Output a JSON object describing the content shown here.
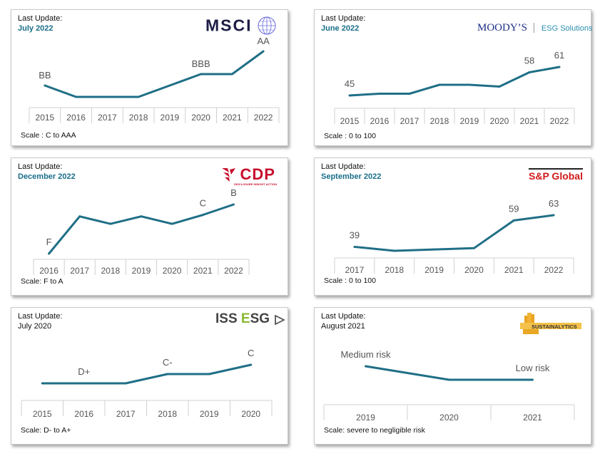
{
  "colors": {
    "line": "#1f6f86",
    "accent_date": "#1a6e8a",
    "grid": "#d0d0d0"
  },
  "cards": [
    {
      "id": "msci",
      "update_label": "Last Update:",
      "update_date": "July 2022",
      "scale": "Scale : C to AAA",
      "logo": {
        "text": "MSCI",
        "icon": "globe-icon"
      },
      "chart_data": {
        "type": "line",
        "x": [
          "2015",
          "2016",
          "2017",
          "2018",
          "2019",
          "2020",
          "2021",
          "2022"
        ],
        "values": [
          3.5,
          3,
          3,
          3,
          3.5,
          4,
          4,
          5
        ],
        "value_scale": [
          "CCC",
          "B",
          "BB",
          "BBB",
          "A",
          "AA",
          "AAA"
        ],
        "annotations": [
          {
            "i": 0,
            "text": "BB"
          },
          {
            "i": 5,
            "text": "BBB"
          },
          {
            "i": 7,
            "text": "AA"
          }
        ]
      }
    },
    {
      "id": "moodys",
      "update_label": "Last Update:",
      "update_date": "June 2022",
      "scale": "Scale : 0 to 100",
      "logo": {
        "brand": "MOODY’S",
        "sub": "ESG Solutions"
      },
      "chart_data": {
        "type": "line",
        "x": [
          "2015",
          "2016",
          "2017",
          "2018",
          "2019",
          "2020",
          "2021",
          "2022"
        ],
        "values": [
          45,
          46,
          46,
          51,
          51,
          50,
          58,
          61
        ],
        "annotations": [
          {
            "i": 0,
            "text": "45"
          },
          {
            "i": 6,
            "text": "58"
          },
          {
            "i": 7,
            "text": "61"
          }
        ]
      }
    },
    {
      "id": "cdp",
      "update_label": "Last Update:",
      "update_date": "December 2022",
      "scale": "Scale: F to A",
      "logo": {
        "text": "CDP",
        "sub": "DISCLOSURE INSIGHT ACTION"
      },
      "chart_data": {
        "type": "line",
        "x": [
          "2016",
          "2017",
          "2018",
          "2019",
          "2020",
          "2021",
          "2022"
        ],
        "values": [
          0,
          2.5,
          2,
          2.5,
          2,
          2.6,
          3.3
        ],
        "annotations": [
          {
            "i": 0,
            "text": "F"
          },
          {
            "i": 5,
            "text": "C"
          },
          {
            "i": 6,
            "text": "B"
          }
        ]
      }
    },
    {
      "id": "sp",
      "update_label": "Last Update:",
      "update_date": "September 2022",
      "scale": "Scale : 0 to 100",
      "logo": {
        "text": "S&P Global"
      },
      "chart_data": {
        "type": "line",
        "x": [
          "2017",
          "2018",
          "2019",
          "2020",
          "2021",
          "2022"
        ],
        "values": [
          39,
          36,
          37,
          38,
          59,
          63
        ],
        "annotations": [
          {
            "i": 0,
            "text": "39"
          },
          {
            "i": 4,
            "text": "59"
          },
          {
            "i": 5,
            "text": "63"
          }
        ]
      }
    },
    {
      "id": "iss",
      "update_label": "Last Update:",
      "update_date": "July 2020",
      "scale": "Scale: D- to A+",
      "logo": {
        "text_a": "ISS ",
        "text_e": "E",
        "text_b": "SG",
        "icon": "play-arrow-icon"
      },
      "chart_data": {
        "type": "line",
        "x": [
          "2015",
          "2016",
          "2017",
          "2018",
          "2019",
          "2020"
        ],
        "values": [
          3,
          3,
          3,
          4,
          4,
          5
        ],
        "value_scale": [
          "D-",
          "D",
          "D+",
          "C-",
          "C",
          "C+"
        ],
        "annotations": [
          {
            "i": 1,
            "text": "D+"
          },
          {
            "i": 3,
            "text": "C-"
          },
          {
            "i": 5,
            "text": "C"
          }
        ]
      }
    },
    {
      "id": "sustainalytics",
      "update_label": "Last Update:",
      "update_date": "August 2021",
      "scale": "Scale: severe to negligible risk",
      "logo": {
        "text": "SUSTAINALYTICS"
      },
      "chart_data": {
        "type": "line",
        "x": [
          "2019",
          "2020",
          "2021"
        ],
        "values": [
          2,
          1,
          1
        ],
        "value_scale": [
          "Low risk",
          "Medium risk"
        ],
        "annotations": [
          {
            "i": 0,
            "text": "Medium risk"
          },
          {
            "i": 2,
            "text": "Low risk"
          }
        ]
      }
    }
  ]
}
